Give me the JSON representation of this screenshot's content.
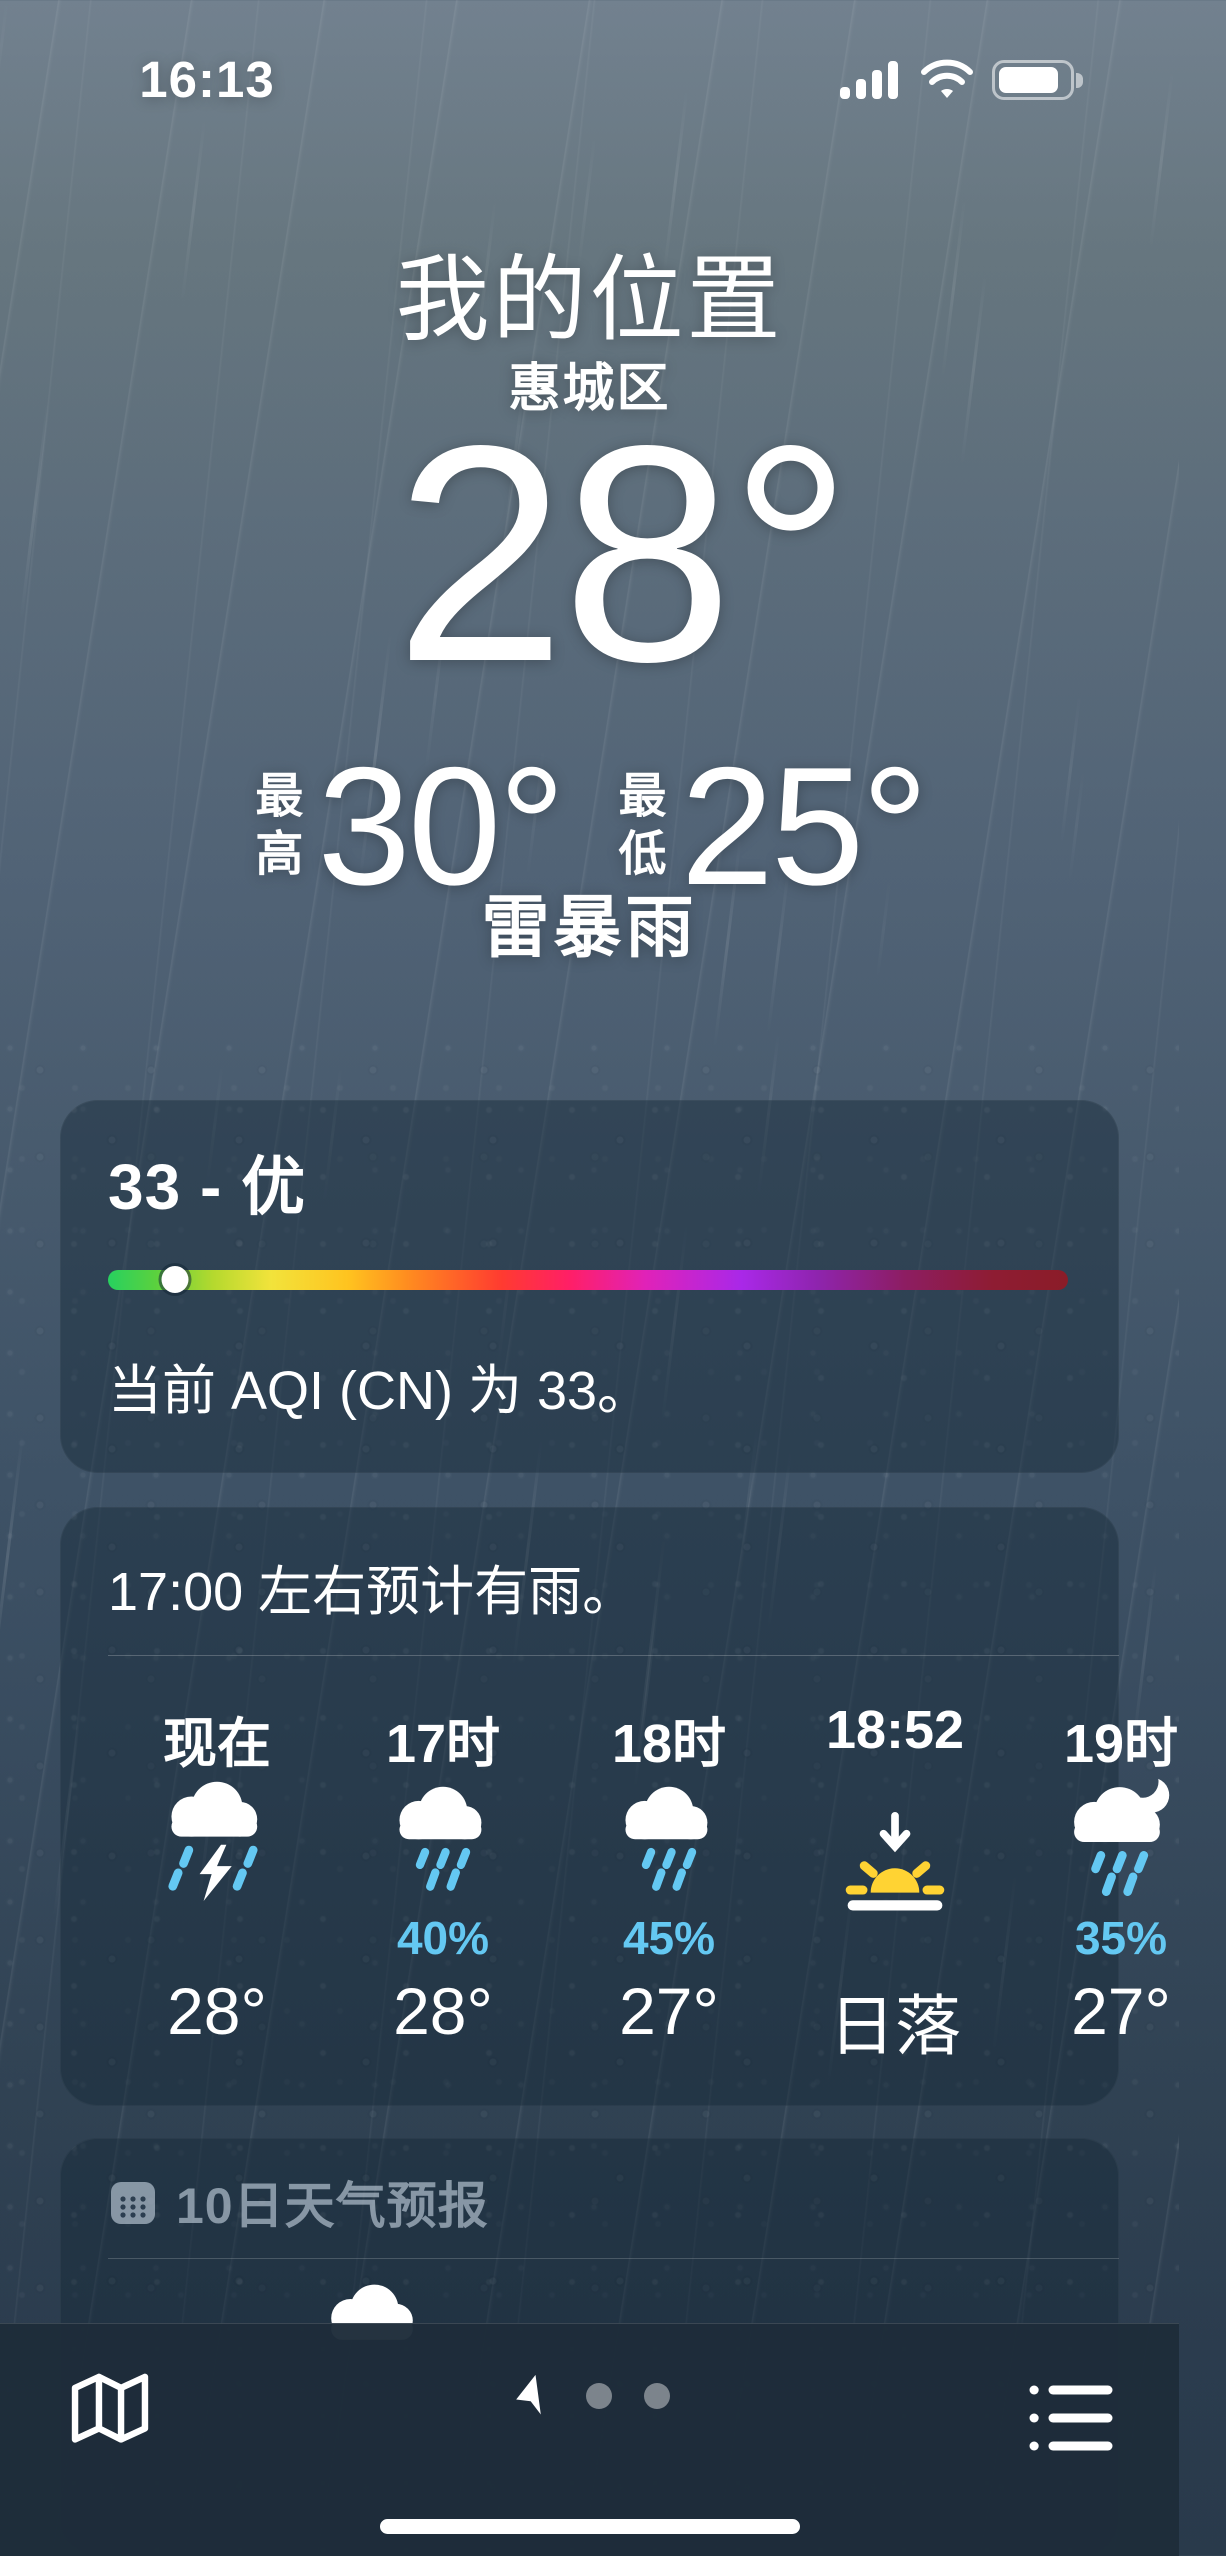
{
  "status_bar": {
    "time": "16:13",
    "signal_bars": 4,
    "battery_pct": 78
  },
  "header": {
    "title": "我的位置",
    "subtitle": "惠城区",
    "temp": "28°",
    "high_label": "最高",
    "high_value": "30°",
    "low_label": "最低",
    "low_value": "25°",
    "condition": "雷暴雨"
  },
  "aqi": {
    "headline": "33 - 优",
    "value": 33,
    "category": "优",
    "description": "当前 AQI (CN) 为 33。",
    "slider_pct": 7,
    "scale": [
      {
        "color": "#27d15f",
        "pos": 0
      },
      {
        "color": "#5bd13e",
        "pos": 5
      },
      {
        "color": "#b5d92e",
        "pos": 11
      },
      {
        "color": "#f2e33b",
        "pos": 17
      },
      {
        "color": "#ffc31f",
        "pos": 25
      },
      {
        "color": "#ff8e1f",
        "pos": 31
      },
      {
        "color": "#ff3b30",
        "pos": 41
      },
      {
        "color": "#ff1f66",
        "pos": 48
      },
      {
        "color": "#e022b8",
        "pos": 56
      },
      {
        "color": "#a928e8",
        "pos": 66
      },
      {
        "color": "#8e24ad",
        "pos": 74
      },
      {
        "color": "#8d1d62",
        "pos": 83
      },
      {
        "color": "#8e1c33",
        "pos": 92
      },
      {
        "color": "#8b1c28",
        "pos": 100
      }
    ]
  },
  "hourly": {
    "summary": "17:00 左右预计有雨。",
    "items": [
      {
        "time": "现在",
        "icon": "thunderstorm-icon",
        "pct": "",
        "bottom": "28°"
      },
      {
        "time": "17时",
        "icon": "rain-icon",
        "pct": "40%",
        "bottom": "28°"
      },
      {
        "time": "18时",
        "icon": "rain-icon",
        "pct": "45%",
        "bottom": "27°"
      },
      {
        "time": "18:52",
        "icon": "sunset-icon",
        "pct": "",
        "bottom": "日落"
      },
      {
        "time": "19时",
        "icon": "night-rain-icon",
        "pct": "35%",
        "bottom": "27°"
      }
    ]
  },
  "forecast": {
    "title": "10日天气预报"
  },
  "colors": {
    "precip_cyan": "#64c8f2",
    "sunset_yellow": "#ffd333",
    "card_bg": "rgba(20,37,53,0.42)",
    "toolbar_bg": "#1e2c3a"
  }
}
